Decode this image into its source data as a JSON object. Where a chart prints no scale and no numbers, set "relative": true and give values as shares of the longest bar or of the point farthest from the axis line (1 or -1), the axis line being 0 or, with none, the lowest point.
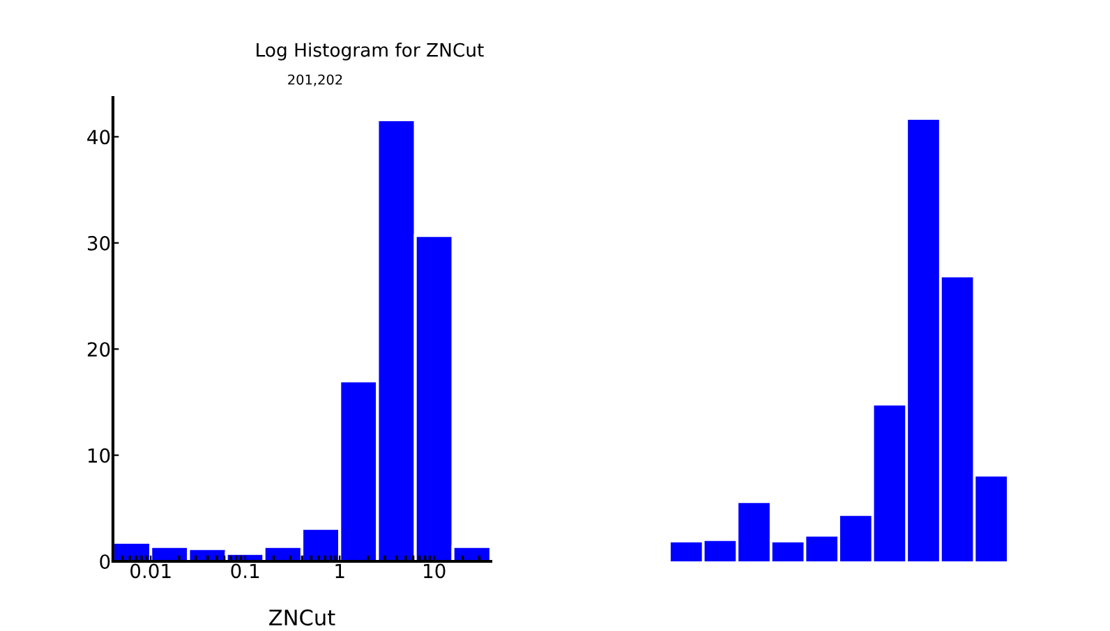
{
  "chart_data": [
    {
      "type": "histogram",
      "title": "Log Histogram for ZNCut",
      "subtitle": "201,202",
      "xlabel": "ZNCut",
      "log": "x",
      "color": "#0000ff",
      "bins": [
        0.00398,
        0.01,
        0.0251,
        0.0631,
        0.158,
        0.398,
        1,
        2.51,
        6.31,
        15.8,
        39.8
      ],
      "values": [
        1.8,
        1.4,
        1.2,
        0.75,
        1.4,
        3.1,
        17.0,
        41.6,
        30.7,
        1.4
      ],
      "xlim": [
        0.00398,
        39.8
      ],
      "xticks": [
        0.01,
        0.1,
        1,
        10
      ],
      "ylim": [
        0,
        43.7
      ],
      "yticks": [
        0,
        10,
        20,
        30,
        40
      ],
      "grid": false
    },
    {
      "type": "bar",
      "relative": true,
      "color": "#0000ff",
      "categories": [
        null,
        null,
        null,
        null,
        null,
        null,
        null,
        null,
        null,
        null
      ],
      "values": [
        0.043,
        0.046,
        0.132,
        0.043,
        0.056,
        0.103,
        0.353,
        1,
        0.643,
        0.192
      ]
    }
  ]
}
